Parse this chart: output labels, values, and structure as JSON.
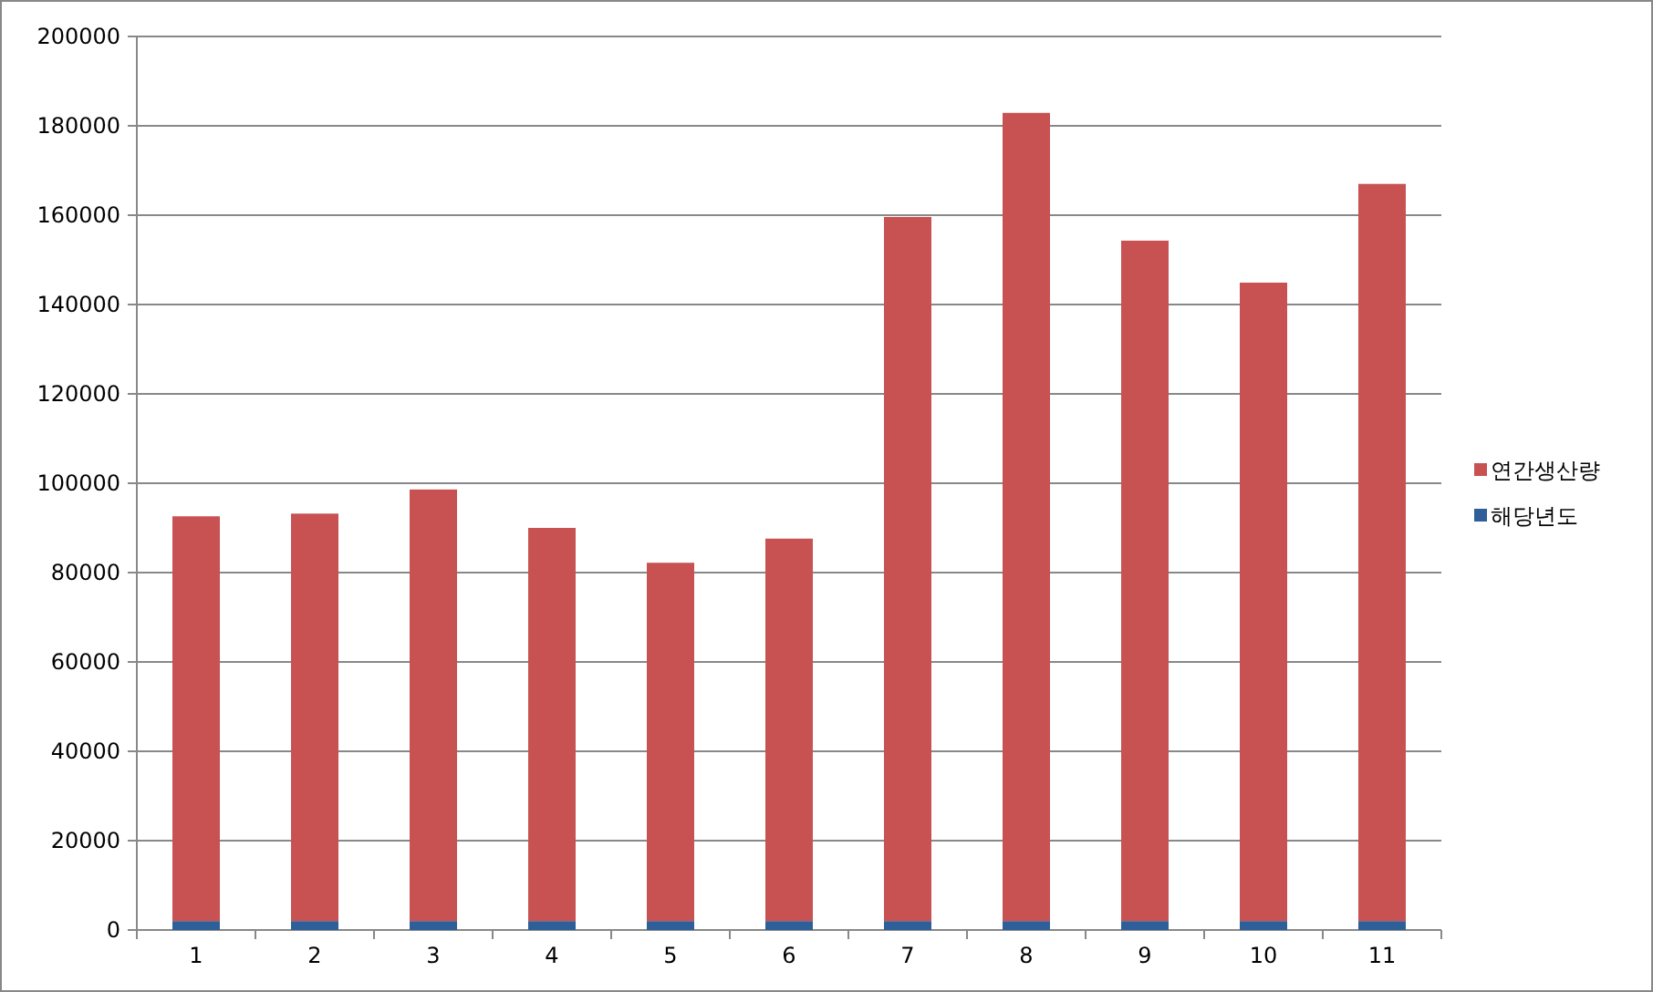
{
  "chart_data": {
    "type": "bar",
    "stacked": true,
    "categories": [
      "1",
      "2",
      "3",
      "4",
      "5",
      "6",
      "7",
      "8",
      "9",
      "10",
      "11"
    ],
    "series": [
      {
        "name": "해당년도",
        "color": "#2f5f98",
        "values": [
          2000,
          2000,
          2000,
          2000,
          2000,
          2000,
          2000,
          2000,
          2000,
          2000,
          2000
        ]
      },
      {
        "name": "연간생산량",
        "color": "#c85252",
        "values": [
          90600,
          91200,
          96600,
          88000,
          80200,
          85600,
          157600,
          180900,
          152300,
          142900,
          165000
        ]
      }
    ],
    "ylim": [
      0,
      200000
    ],
    "yticks": [
      0,
      20000,
      40000,
      60000,
      80000,
      100000,
      120000,
      140000,
      160000,
      180000,
      200000
    ],
    "grid": "y",
    "legend": "right"
  }
}
